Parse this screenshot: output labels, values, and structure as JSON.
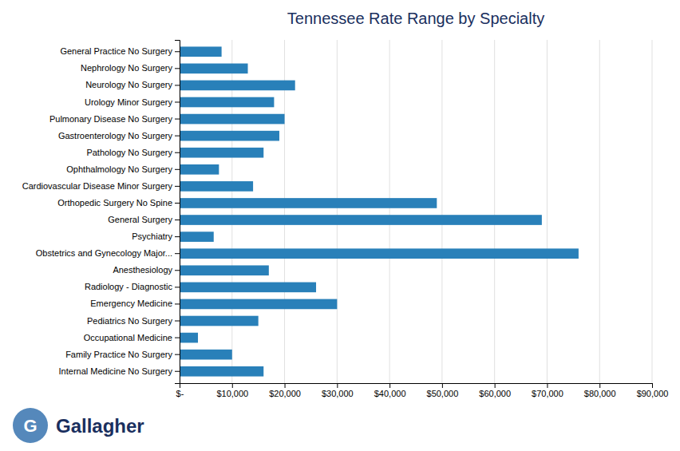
{
  "chart_data": {
    "type": "bar",
    "orientation": "horizontal",
    "title": "Tennessee Rate Range by Specialty",
    "categories": [
      "General Practice No Surgery",
      "Nephrology No Surgery",
      "Neurology No Surgery",
      "Urology Minor Surgery",
      "Pulmonary Disease No Surgery",
      "Gastroenterology No Surgery",
      "Pathology No Surgery",
      "Ophthalmology No Surgery",
      "Cardiovascular Disease Minor Surgery",
      "Orthopedic Surgery No Spine",
      "General Surgery",
      "Psychiatry",
      "Obstetrics and Gynecology Major...",
      "Anesthesiology",
      "Radiology - Diagnostic",
      "Emergency Medicine",
      "Pediatrics No Surgery",
      "Occupational Medicine",
      "Family Practice No Surgery",
      "Internal Medicine No Surgery"
    ],
    "values": [
      8000,
      13000,
      22000,
      18000,
      20000,
      19000,
      16000,
      7500,
      14000,
      49000,
      69000,
      6500,
      76000,
      17000,
      26000,
      30000,
      15000,
      3500,
      10000,
      16000
    ],
    "color": "#2980b9",
    "xlim": [
      0,
      90000
    ],
    "xticks": [
      {
        "value": 0,
        "label": "$-"
      },
      {
        "value": 10000,
        "label": "$10,000"
      },
      {
        "value": 20000,
        "label": "$20,000"
      },
      {
        "value": 30000,
        "label": "$30,000"
      },
      {
        "value": 40000,
        "label": "$40,000"
      },
      {
        "value": 50000,
        "label": "$50,000"
      },
      {
        "value": 60000,
        "label": "$60,000"
      },
      {
        "value": 70000,
        "label": "$70,000"
      },
      {
        "value": 80000,
        "label": "$80,000"
      },
      {
        "value": 90000,
        "label": "$90,000"
      }
    ],
    "grid": true,
    "annotations": [
      "G",
      "Gallagher"
    ]
  }
}
